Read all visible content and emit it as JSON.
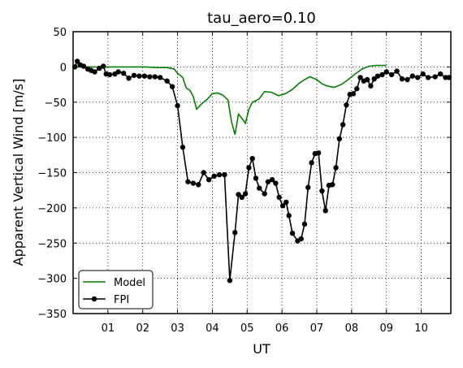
{
  "chart_data": {
    "type": "line",
    "title": "tau_aero=0.10",
    "xlabel": "UT",
    "ylabel": "Apparent Vertical Wind [m/s]",
    "xlim": [
      0,
      10.85
    ],
    "ylim": [
      -350,
      50
    ],
    "xticks": [
      1,
      2,
      3,
      4,
      5,
      6,
      7,
      8,
      9,
      10
    ],
    "xtick_labels": [
      "01",
      "02",
      "03",
      "04",
      "05",
      "06",
      "07",
      "08",
      "09",
      "10"
    ],
    "yticks": [
      50,
      0,
      -50,
      -100,
      -150,
      -200,
      -250,
      -300,
      -350
    ],
    "ytick_labels": [
      "50",
      "0",
      "−50",
      "−100",
      "−150",
      "−200",
      "−250",
      "−300",
      "−350"
    ],
    "grid": true,
    "legend_position": "lower-left",
    "series": [
      {
        "name": "Model",
        "color": "#008000",
        "marker": "none",
        "x": [
          0.0,
          0.3,
          0.6,
          0.9,
          1.2,
          1.5,
          1.8,
          2.1,
          2.4,
          2.7,
          2.9,
          3.0,
          3.15,
          3.25,
          3.35,
          3.45,
          3.55,
          3.7,
          3.85,
          4.0,
          4.15,
          4.3,
          4.45,
          4.55,
          4.65,
          4.75,
          4.85,
          4.95,
          5.05,
          5.15,
          5.25,
          5.35,
          5.5,
          5.7,
          5.9,
          6.1,
          6.3,
          6.5,
          6.65,
          6.8,
          7.0,
          7.15,
          7.3,
          7.5,
          7.7,
          7.9,
          8.1,
          8.3,
          8.5,
          8.7,
          9.0
        ],
        "y": [
          0,
          0,
          0,
          0,
          0,
          0,
          0,
          0,
          -1,
          -1,
          -3,
          -9,
          -15,
          -30,
          -33,
          -42,
          -60,
          -52,
          -46,
          -38,
          -37,
          -40,
          -47,
          -78,
          -96,
          -67,
          -73,
          -80,
          -60,
          -50,
          -48,
          -45,
          -35,
          -36,
          -41,
          -38,
          -32,
          -23,
          -18,
          -14,
          -18,
          -24,
          -27,
          -29,
          -25,
          -18,
          -10,
          -3,
          1,
          2,
          2
        ]
      },
      {
        "name": "FPI",
        "color": "#000000",
        "marker": "circle",
        "x": [
          0.05,
          0.12,
          0.2,
          0.3,
          0.42,
          0.52,
          0.62,
          0.75,
          0.87,
          0.95,
          1.05,
          1.2,
          1.3,
          1.45,
          1.6,
          1.75,
          1.9,
          2.05,
          2.2,
          2.35,
          2.5,
          2.7,
          2.85,
          3.0,
          3.15,
          3.3,
          3.45,
          3.6,
          3.75,
          3.9,
          4.05,
          4.2,
          4.35,
          4.5,
          4.65,
          4.75,
          4.85,
          4.95,
          5.05,
          5.15,
          5.25,
          5.35,
          5.5,
          5.6,
          5.72,
          5.82,
          5.92,
          6.02,
          6.12,
          6.2,
          6.3,
          6.45,
          6.55,
          6.65,
          6.75,
          6.85,
          6.95,
          7.05,
          7.15,
          7.25,
          7.35,
          7.45,
          7.55,
          7.65,
          7.75,
          7.85,
          7.95,
          8.05,
          8.15,
          8.25,
          8.35,
          8.45,
          8.55,
          8.65,
          8.75,
          8.88,
          9.0,
          9.15,
          9.3,
          9.45,
          9.6,
          9.75,
          9.9,
          10.05,
          10.2,
          10.4,
          10.55,
          10.7,
          10.8
        ],
        "y": [
          0,
          8,
          3,
          1,
          -3,
          -5,
          -7,
          -2,
          1,
          -10,
          -11,
          -10,
          -7,
          -9,
          -16,
          -12,
          -13,
          -13,
          -14,
          -14,
          -15,
          -20,
          -28,
          -55,
          -114,
          -163,
          -165,
          -167,
          -150,
          -160,
          -155,
          -153,
          -153,
          -303,
          -235,
          -181,
          -185,
          -180,
          -143,
          -130,
          -158,
          -172,
          -180,
          -163,
          -160,
          -165,
          -185,
          -197,
          -192,
          -211,
          -236,
          -247,
          -244,
          -223,
          -171,
          -136,
          -123,
          -122,
          -176,
          -204,
          -168,
          -167,
          -143,
          -102,
          -82,
          -54,
          -39,
          -38,
          -31,
          -15,
          -20,
          -18,
          -27,
          -17,
          -13,
          -11,
          -7,
          -11,
          -6,
          -17,
          -18,
          -13,
          -15,
          -10,
          -15,
          -14,
          -10,
          -15,
          -15
        ]
      }
    ]
  }
}
